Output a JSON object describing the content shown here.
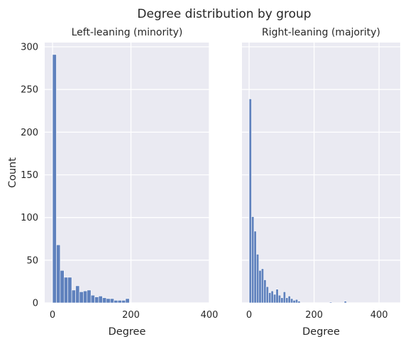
{
  "figure": {
    "title": "Degree distribution by group"
  },
  "chart_data": [
    {
      "type": "bar",
      "title": "Left-leaning (minority)",
      "xlabel": "Degree",
      "ylabel": "Count",
      "xlim": [
        -20,
        400
      ],
      "ylim": [
        0,
        305
      ],
      "xticks": [
        0,
        200,
        400
      ],
      "yticks": [
        0,
        50,
        100,
        150,
        200,
        250,
        300
      ],
      "grid": true,
      "bin_width": 9.8,
      "bin_start": 0,
      "values": [
        291,
        68,
        38,
        30,
        30,
        15,
        20,
        13,
        14,
        15,
        9,
        7,
        8,
        6,
        5,
        5,
        3,
        3,
        3,
        5
      ]
    },
    {
      "type": "bar",
      "title": "Right-leaning (majority)",
      "xlabel": "Degree",
      "ylabel": "",
      "xlim": [
        -22,
        465
      ],
      "ylim": [
        0,
        305
      ],
      "xticks": [
        0,
        200,
        400
      ],
      "yticks": [
        0,
        50,
        100,
        150,
        200,
        250,
        300
      ],
      "grid": true,
      "bin_width": 7.5,
      "bin_start": 0,
      "values": [
        239,
        101,
        84,
        57,
        38,
        40,
        27,
        19,
        12,
        14,
        10,
        16,
        9,
        6,
        13,
        6,
        8,
        5,
        3,
        4,
        2,
        0,
        0,
        0,
        0,
        0,
        0,
        0,
        0,
        0,
        0,
        0,
        0,
        1,
        0,
        0,
        0,
        0,
        0,
        2
      ]
    }
  ],
  "colors": {
    "bar_fill": "#5f81bd",
    "bar_stroke": "#ffffff",
    "axes_bg": "#eaeaf2",
    "grid": "#ffffff"
  }
}
